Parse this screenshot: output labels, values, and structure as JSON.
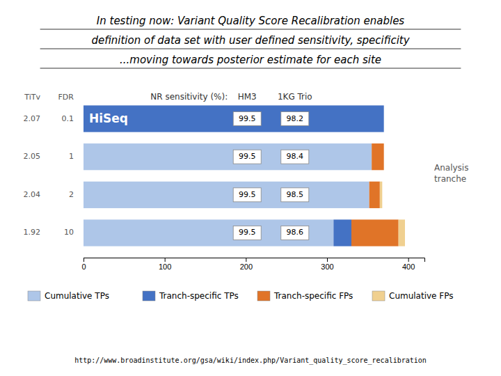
{
  "chart_data": {
    "type": "bar",
    "orientation": "horizontal",
    "stacked": true,
    "title": [
      "In testing now: Variant Quality Score Recalibration enables",
      "definition of data set with user defined sensitivity, specificity",
      "...moving towards posterior estimate for each site"
    ],
    "footer": "http://www.broadinstitute.org/gsa/wiki/index.php/Variant_quality_score_recalibration",
    "ylabel": "Analysis\ntranche",
    "category_label": "TiTv",
    "categories": [
      "2.07",
      "2.05",
      "2.04",
      "1.92"
    ],
    "fdr_label": "FDR",
    "fdr": [
      "0.1",
      "1",
      "2",
      "10"
    ],
    "bar_names": [
      "HiSeq",
      null,
      null,
      null
    ],
    "sensitivity_label": "NR sensitivity (%):",
    "sensitivity": [
      {
        "name": "HM3",
        "values": [
          99.5,
          99.5,
          99.5,
          99.5
        ]
      },
      {
        "name": "1KG Trio",
        "values": [
          98.2,
          98.4,
          98.5,
          98.6
        ]
      }
    ],
    "series": [
      {
        "name": "Cumulative TPs",
        "color": "#aec6e8",
        "colors": [
          "#4472c4",
          "#aec6e8",
          "#aec6e8",
          "#aec6e8"
        ],
        "values": [
          370,
          355,
          352,
          308
        ]
      },
      {
        "name": "Tranch-specific TPs",
        "color": "#4472c4",
        "values": [
          0,
          0,
          0,
          22
        ]
      },
      {
        "name": "Tranch-specific FPs",
        "color": "#e07428",
        "values": [
          0,
          15,
          13,
          58
        ]
      },
      {
        "name": "Cumulative FPs",
        "color": "#f0d090",
        "values": [
          0,
          0,
          3,
          8
        ]
      }
    ],
    "xlim": [
      0,
      420
    ],
    "xticks": [
      0,
      100,
      200,
      300,
      400
    ],
    "legend": "bottom"
  }
}
